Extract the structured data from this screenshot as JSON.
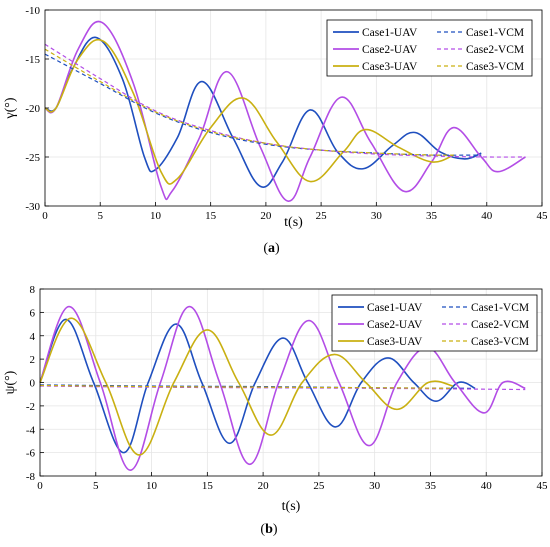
{
  "colors": {
    "case1": "#1f4fbf",
    "case2": "#b34de6",
    "case3": "#c9b012",
    "axis": "#000000",
    "grid": "#e5e5e5"
  },
  "chart_data": [
    {
      "type": "line",
      "panel_label": "(a)",
      "xlabel": "t(s)",
      "ylabel": "γ(°)",
      "xlim": [
        0,
        45
      ],
      "ylim": [
        -30,
        -10
      ],
      "xticks": [
        0,
        5,
        10,
        15,
        20,
        25,
        30,
        35,
        40,
        45
      ],
      "yticks": [
        -10,
        -15,
        -20,
        -25,
        -30
      ],
      "grid": true,
      "legend": "top-right",
      "series": [
        {
          "name": "Case1-UAV",
          "style": "solid",
          "color_key": "case1",
          "x": [
            0,
            1,
            2.5,
            4.6,
            7,
            9,
            10,
            12,
            14.2,
            17,
            19.5,
            21.5,
            24,
            26.5,
            28.8,
            31.5,
            33.5,
            35.8,
            38,
            39.5
          ],
          "y": [
            -20,
            -20,
            -16,
            -12.8,
            -17,
            -25,
            -26.3,
            -23,
            -17.3,
            -23,
            -28,
            -25.5,
            -20.2,
            -24.5,
            -26.2,
            -23.8,
            -22.5,
            -24.5,
            -25.2,
            -24.6
          ]
        },
        {
          "name": "Case2-UAV",
          "style": "solid",
          "color_key": "case2",
          "x": [
            0,
            1,
            3,
            5.2,
            8,
            10.5,
            11.5,
            14,
            16.5,
            19.5,
            22,
            24,
            26.8,
            29.5,
            32.5,
            35,
            37,
            39.5,
            41,
            43.5
          ],
          "y": [
            -20,
            -20,
            -14,
            -11.3,
            -17.5,
            -28,
            -28.5,
            -23,
            -16.3,
            -24,
            -29.5,
            -25,
            -18.9,
            -23.5,
            -28.5,
            -25.5,
            -22,
            -25,
            -26.5,
            -25
          ]
        },
        {
          "name": "Case3-UAV",
          "style": "solid",
          "color_key": "case3",
          "x": [
            0,
            1,
            3,
            5.3,
            8,
            10.5,
            12,
            15,
            18,
            21,
            24,
            27,
            29,
            32,
            35,
            37
          ],
          "y": [
            -20,
            -20,
            -15,
            -13.2,
            -18.5,
            -26.5,
            -27.2,
            -22,
            -19,
            -23.5,
            -27.5,
            -24.5,
            -22.2,
            -24,
            -25.5,
            -24.8
          ]
        },
        {
          "name": "Case1-VCM",
          "style": "dashed",
          "color_key": "case1",
          "x": [
            0,
            5,
            10,
            15,
            20,
            25,
            30,
            35,
            39.5
          ],
          "y": [
            -14.5,
            -17.5,
            -20.5,
            -22.5,
            -23.7,
            -24.3,
            -24.6,
            -24.8,
            -24.8
          ]
        },
        {
          "name": "Case2-VCM",
          "style": "dashed",
          "color_key": "case2",
          "x": [
            0,
            5,
            10,
            15,
            20,
            25,
            30,
            35,
            40,
            43.5
          ],
          "y": [
            -13.5,
            -17,
            -20.3,
            -22.3,
            -23.6,
            -24.3,
            -24.7,
            -24.9,
            -25,
            -25
          ]
        },
        {
          "name": "Case3-VCM",
          "style": "dashed",
          "color_key": "case3",
          "x": [
            0,
            5,
            10,
            15,
            20,
            25,
            30,
            35,
            37
          ],
          "y": [
            -14,
            -17.3,
            -20.4,
            -22.4,
            -23.6,
            -24.3,
            -24.6,
            -24.8,
            -24.8
          ]
        }
      ]
    },
    {
      "type": "line",
      "panel_label": "(b)",
      "xlabel": "t(s)",
      "ylabel": "ψ(°)",
      "xlim": [
        0,
        45
      ],
      "ylim": [
        -8,
        8
      ],
      "xticks": [
        0,
        5,
        10,
        15,
        20,
        25,
        30,
        35,
        40,
        45
      ],
      "yticks": [
        8,
        6,
        4,
        2,
        0,
        -2,
        -4,
        -6,
        -8
      ],
      "grid": true,
      "legend": "top-right",
      "series": [
        {
          "name": "Case1-UAV",
          "style": "solid",
          "color_key": "case1",
          "x": [
            0,
            2.3,
            4.8,
            7.5,
            9.7,
            12.2,
            14.5,
            17,
            19.3,
            21.8,
            24,
            26.5,
            28.8,
            31.2,
            33.5,
            35.5,
            37.5,
            39
          ],
          "y": [
            0,
            5.4,
            0,
            -6,
            0,
            5,
            0,
            -5.2,
            0,
            3.8,
            0,
            -3.8,
            0,
            2.1,
            0,
            -1.6,
            0,
            -0.5
          ]
        },
        {
          "name": "Case2-UAV",
          "style": "solid",
          "color_key": "case2",
          "x": [
            0,
            2.6,
            5.4,
            8.1,
            10.8,
            13.4,
            16.1,
            18.8,
            21.4,
            24.1,
            26.8,
            29.5,
            32,
            34.7,
            37.2,
            39.8,
            41.5,
            43.5
          ],
          "y": [
            0,
            6.5,
            0,
            -7.5,
            0,
            6.5,
            0,
            -7,
            0,
            5.3,
            0,
            -5.4,
            0,
            3,
            0,
            -2.6,
            0,
            -0.5
          ]
        },
        {
          "name": "Case3-UAV",
          "style": "solid",
          "color_key": "case3",
          "x": [
            0,
            2.8,
            5.9,
            8.9,
            12,
            15,
            17.8,
            20.7,
            23.5,
            26.4,
            29.2,
            32,
            34.8,
            37
          ],
          "y": [
            0,
            5.5,
            0,
            -6.2,
            0,
            4.5,
            0,
            -4.5,
            0,
            2.4,
            0,
            -2.3,
            0,
            -0.3
          ]
        },
        {
          "name": "Case1-VCM",
          "style": "dashed",
          "color_key": "case1",
          "x": [
            0,
            10,
            20,
            30,
            39
          ],
          "y": [
            -0.2,
            -0.3,
            -0.35,
            -0.45,
            -0.5
          ]
        },
        {
          "name": "Case2-VCM",
          "style": "dashed",
          "color_key": "case2",
          "x": [
            0,
            10,
            20,
            30,
            43.5
          ],
          "y": [
            -0.3,
            -0.4,
            -0.45,
            -0.5,
            -0.6
          ]
        },
        {
          "name": "Case3-VCM",
          "style": "dashed",
          "color_key": "case3",
          "x": [
            0,
            10,
            20,
            30,
            37
          ],
          "y": [
            -0.25,
            -0.35,
            -0.4,
            -0.45,
            -0.5
          ]
        }
      ]
    }
  ]
}
